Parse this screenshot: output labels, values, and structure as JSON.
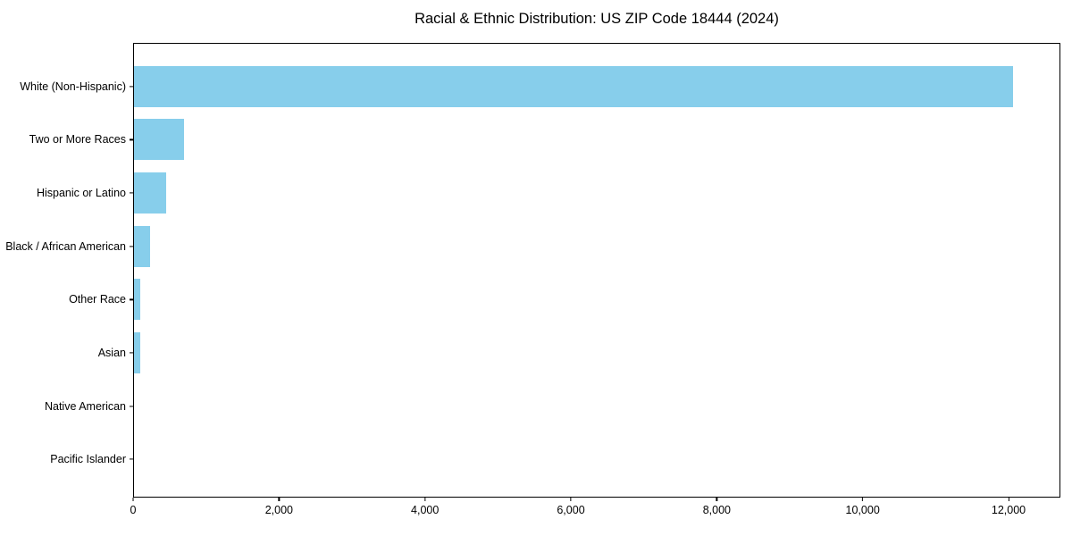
{
  "chart_data": {
    "type": "bar",
    "orientation": "horizontal",
    "title": "Racial & Ethnic Distribution: US ZIP Code 18444 (2024)",
    "categories": [
      "White (Non-Hispanic)",
      "Two or More Races",
      "Hispanic or Latino",
      "Black / African American",
      "Other Race",
      "Asian",
      "Native American",
      "Pacific Islander"
    ],
    "values": [
      12070,
      685,
      440,
      215,
      90,
      80,
      0,
      0
    ],
    "bar_color": "#87CEEB",
    "xlabel": "",
    "ylabel": "",
    "xlim": [
      0,
      12710
    ],
    "xticks": [
      0,
      2000,
      4000,
      6000,
      8000,
      10000,
      12000
    ],
    "xtick_labels": [
      "0",
      "2,000",
      "4,000",
      "6,000",
      "8,000",
      "10,000",
      "12,000"
    ],
    "grid": false,
    "legend": null,
    "frame": "full-box"
  }
}
